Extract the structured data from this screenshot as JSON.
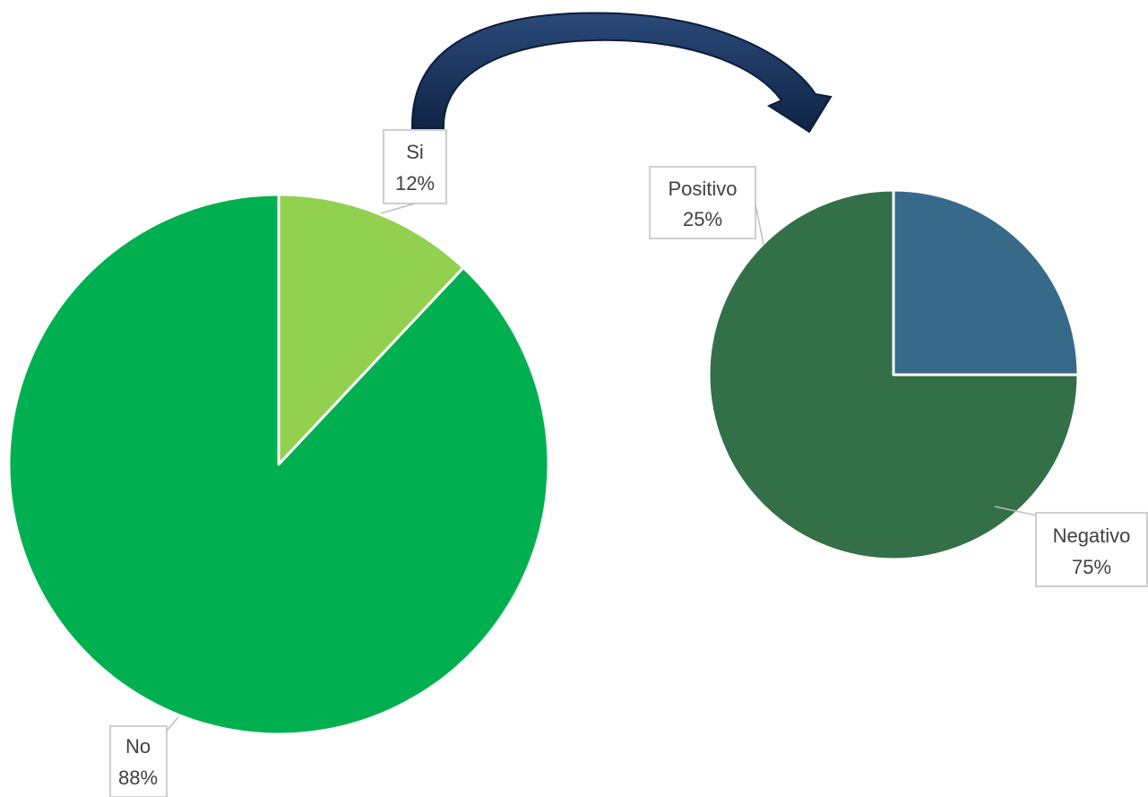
{
  "chart_data": [
    {
      "type": "pie",
      "categories": [
        "Si",
        "No"
      ],
      "values": [
        12,
        88
      ],
      "data_labels": [
        "12%",
        "88%"
      ],
      "colors": [
        "#92d050",
        "#00b050"
      ],
      "title": "",
      "legend": "none"
    },
    {
      "type": "pie",
      "categories": [
        "Positivo",
        "Negativo"
      ],
      "values": [
        25,
        75
      ],
      "data_labels": [
        "25%",
        "75%"
      ],
      "colors": [
        "#376a8a",
        "#336f47"
      ],
      "title": "",
      "legend": "none"
    }
  ],
  "arrow": {
    "meaning": "Si breakdown",
    "color": "#17375e"
  }
}
